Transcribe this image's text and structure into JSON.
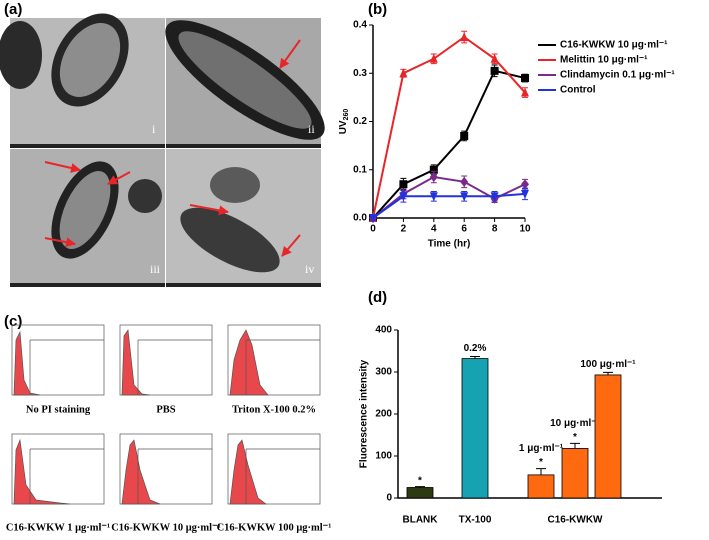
{
  "panel_labels": [
    "(a)",
    "(b)",
    "(c)",
    "(d)"
  ],
  "tem_labels": [
    "i",
    "ii",
    "iii",
    "iv"
  ],
  "flow_captions": [
    "No PI staining",
    "PBS",
    "Triton X-100 0.2%",
    "C16-KWKW 1 μg·ml⁻¹",
    "C16-KWKW 10 μg·ml⁻¹",
    "C16-KWKW 100 μg·ml⁻¹"
  ],
  "chart_data": [
    {
      "type": "line",
      "x_label": "Time (hr)",
      "y_label": "UV",
      "y_label_sub": "260",
      "x": [
        0,
        2,
        4,
        6,
        8,
        10
      ],
      "xlim": [
        0,
        10
      ],
      "xticks": [
        0,
        2,
        4,
        6,
        8,
        10
      ],
      "ylim": [
        0,
        0.4
      ],
      "yticks": [
        {
          "value": 0,
          "label": "0.0"
        },
        0.1,
        0.2,
        0.3,
        0.4
      ],
      "legend": "right",
      "series": [
        {
          "name": "C16-KWKW 10 μg·ml⁻¹",
          "color": "#000000",
          "marker": "square",
          "values": [
            0,
            0.07,
            0.1,
            0.17,
            0.305,
            0.29
          ],
          "errors": [
            0.005,
            0.012,
            0.01,
            0.01,
            0.012,
            0.008
          ]
        },
        {
          "name": "Melittin 10 μg·ml⁻¹",
          "color": "#e8262a",
          "marker": "triangle",
          "values": [
            0,
            0.3,
            0.33,
            0.375,
            0.33,
            0.26
          ],
          "errors": [
            0.005,
            0.008,
            0.01,
            0.012,
            0.01,
            0.01
          ]
        },
        {
          "name": "Clindamycin 0.1 μg·ml⁻¹",
          "color": "#7b2a8c",
          "marker": "diamond",
          "values": [
            0,
            0.05,
            0.085,
            0.075,
            0.04,
            0.07
          ],
          "errors": [
            0.005,
            0.01,
            0.012,
            0.012,
            0.008,
            0.01
          ]
        },
        {
          "name": "Control",
          "color": "#2233dd",
          "marker": "triangle-down",
          "values": [
            0,
            0.045,
            0.045,
            0.045,
            0.045,
            0.05
          ],
          "errors": [
            0.005,
            0.012,
            0.01,
            0.01,
            0.01,
            0.012
          ]
        }
      ]
    },
    {
      "type": "bar",
      "y_label": "Fluorescence intensity",
      "categories": [
        "BLANK",
        "TX-100",
        null,
        null,
        null
      ],
      "group_label": "C16-KWKW",
      "values": [
        25,
        332,
        55,
        118,
        293
      ],
      "errors": [
        2,
        5,
        15,
        12,
        6
      ],
      "colors": [
        "#2e3a12",
        "#17a2b2",
        "#ff6a10",
        "#ff6a10",
        "#ff6a10"
      ],
      "bar_labels": [
        null,
        "0.2%",
        "1 μg·ml⁻¹",
        "10 μg·ml⁻¹",
        "100 μg·ml⁻¹"
      ],
      "significance": [
        "*",
        null,
        "*",
        "*",
        null
      ],
      "ylim": [
        0,
        400
      ],
      "yticks": [
        0,
        100,
        200,
        300,
        400
      ]
    }
  ]
}
